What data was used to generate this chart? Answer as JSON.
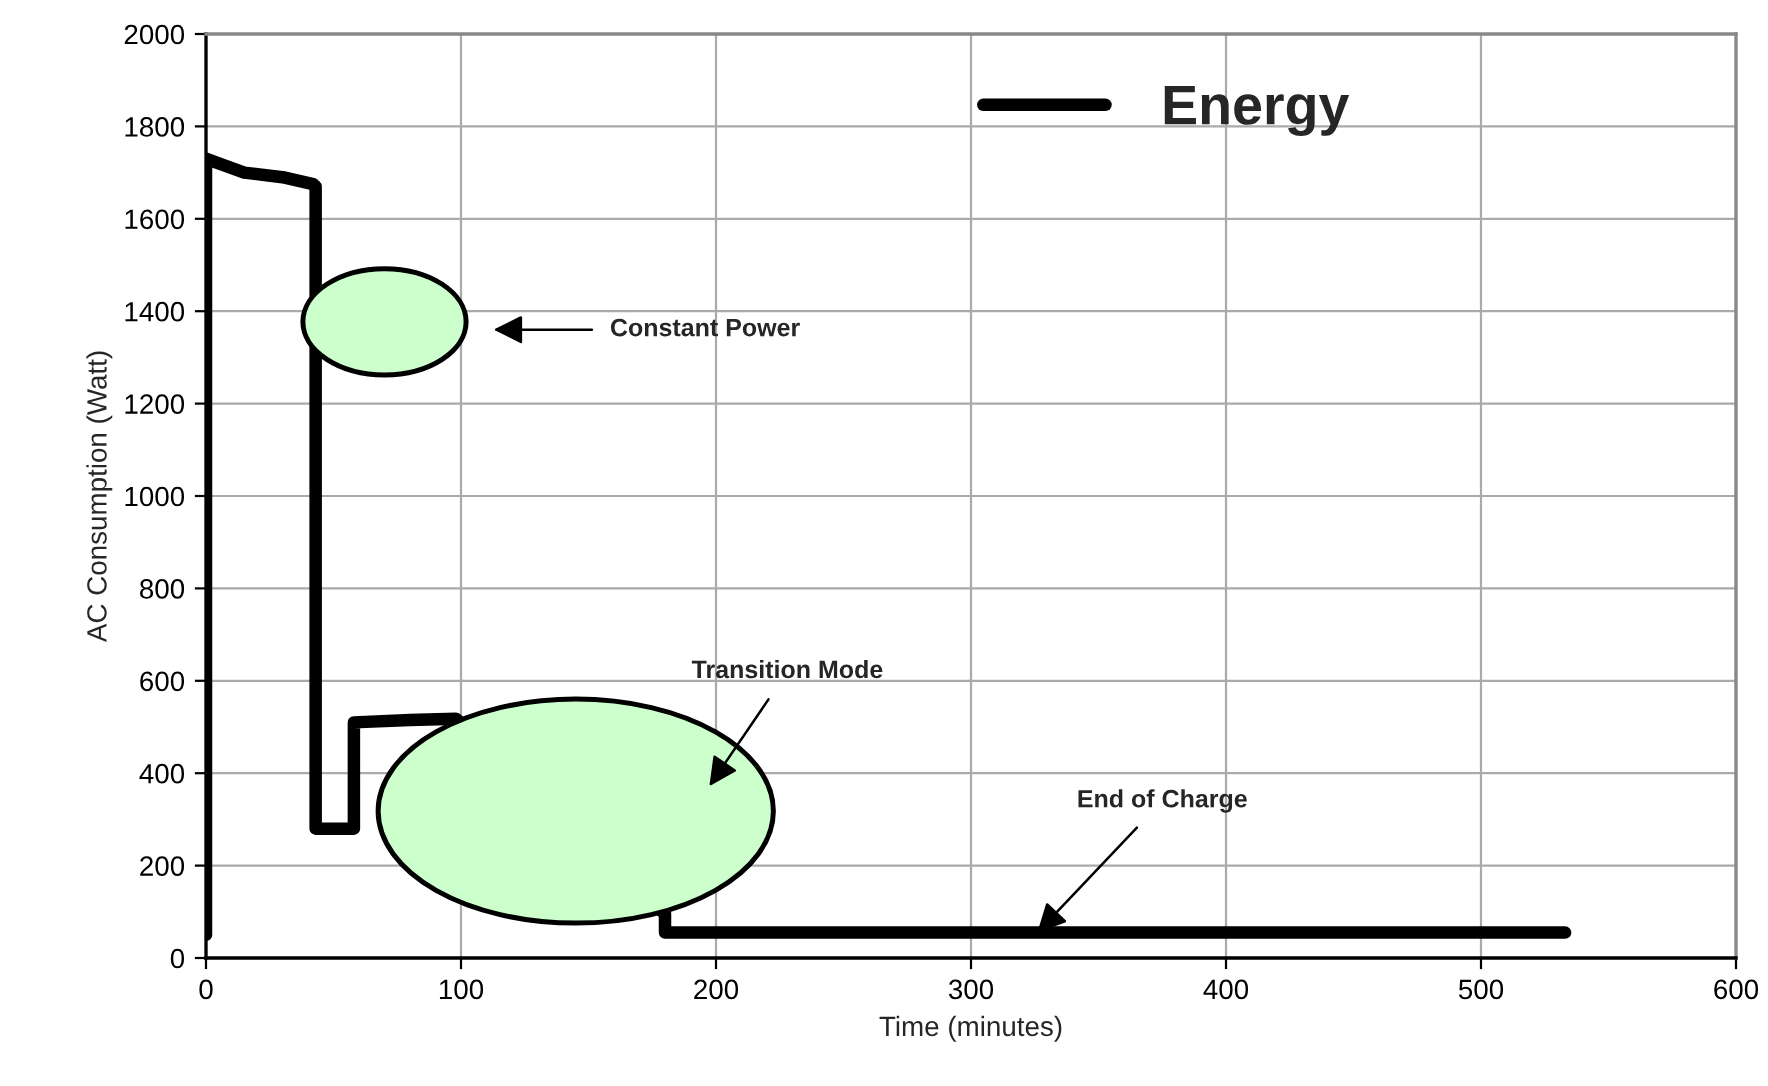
{
  "chart_data": {
    "type": "line",
    "xlabel": "Time (minutes)",
    "ylabel": "AC Consumption (Watt)",
    "xlim": [
      0,
      600
    ],
    "xticks": [
      0,
      100,
      200,
      300,
      400,
      500,
      600
    ],
    "ylim": [
      0,
      2000
    ],
    "yticks": [
      0,
      200,
      400,
      600,
      800,
      1000,
      1200,
      1400,
      1600,
      1800,
      2000
    ],
    "grid": true,
    "legend": "top right",
    "marker": "none",
    "line_style": "solid",
    "series": [
      {
        "name": "Energy",
        "color": "#000000",
        "x": [
          0,
          0,
          5,
          15,
          30,
          42,
          43,
          43,
          58,
          58,
          80,
          98,
          140,
          180,
          180,
          533
        ],
        "values": [
          50,
          1730,
          1720,
          1700,
          1690,
          1675,
          1670,
          280,
          280,
          510,
          515,
          518,
          null,
          95,
          55,
          55
        ]
      }
    ],
    "annotations": [
      "Constant Power",
      "Transition Mode",
      {
        "text": "End of Charge",
        "x": 326,
        "y": 55
      }
    ]
  }
}
